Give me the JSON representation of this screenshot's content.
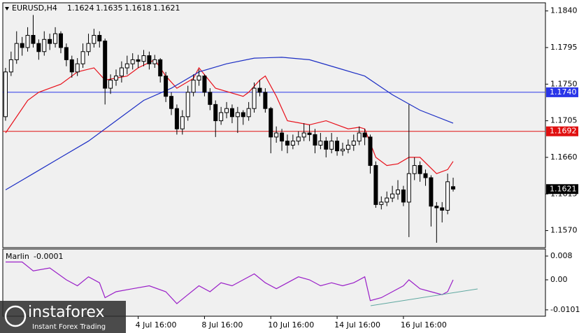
{
  "chart_data": {
    "type": "candlestick",
    "title": "EURUSD,H4",
    "xlim": [
      -0.5,
      97.7
    ],
    "ylim": [
      1.1549,
      1.185
    ],
    "yticks": [
      {
        "value": 1.184,
        "label": "1.1840"
      },
      1.1795,
      {
        "value": 1.175,
        "label": "1.1750"
      },
      1.1705,
      {
        "value": 1.166,
        "label": "1.1660"
      },
      1.1615,
      {
        "value": 1.157,
        "label": "1.1570"
      }
    ],
    "xticks": [
      {
        "value": 24,
        "label": "4 Jul 16:00"
      },
      {
        "value": 36,
        "label": "8 Jul 16:00"
      },
      {
        "value": 48,
        "label": "10 Jul 16:00"
      },
      {
        "value": 60,
        "label": "14 Jul 16:00"
      },
      {
        "value": 72,
        "label": "16 Jul 16:00"
      }
    ],
    "up_color": "#ffffff",
    "down_color": "#000000",
    "candles": [
      [
        1.171,
        1.177,
        1.1705,
        1.1765
      ],
      [
        1.1765,
        1.179,
        1.176,
        1.178
      ],
      [
        1.178,
        1.1815,
        1.1775,
        1.18
      ],
      [
        1.18,
        1.1808,
        1.1785,
        1.1795
      ],
      [
        1.1795,
        1.182,
        1.179,
        1.181
      ],
      [
        1.181,
        1.1835,
        1.1795,
        1.18
      ],
      [
        1.18,
        1.1805,
        1.178,
        1.179
      ],
      [
        1.179,
        1.1815,
        1.1785,
        1.1805
      ],
      [
        1.1805,
        1.1812,
        1.1792,
        1.18
      ],
      [
        1.18,
        1.182,
        1.1795,
        1.1812
      ],
      [
        1.1812,
        1.1815,
        1.1788,
        1.1795
      ],
      [
        1.1795,
        1.18,
        1.1772,
        1.178
      ],
      [
        1.178,
        1.1785,
        1.1758,
        1.1765
      ],
      [
        1.1765,
        1.1782,
        1.176,
        1.1775
      ],
      [
        1.1775,
        1.18,
        1.177,
        1.179
      ],
      [
        1.179,
        1.1812,
        1.1785,
        1.18
      ],
      [
        1.18,
        1.1818,
        1.1795,
        1.181
      ],
      [
        1.181,
        1.1815,
        1.1795,
        1.1803
      ],
      [
        1.1803,
        1.1806,
        1.1725,
        1.1745
      ],
      [
        1.1745,
        1.1762,
        1.1738,
        1.1755
      ],
      [
        1.1755,
        1.1768,
        1.1748,
        1.176
      ],
      [
        1.176,
        1.1778,
        1.1752,
        1.177
      ],
      [
        1.177,
        1.1785,
        1.1762,
        1.1775
      ],
      [
        1.1775,
        1.1788,
        1.1768,
        1.178
      ],
      [
        1.178,
        1.1786,
        1.177,
        1.1778
      ],
      [
        1.1778,
        1.1792,
        1.1772,
        1.1785
      ],
      [
        1.1785,
        1.179,
        1.1768,
        1.1775
      ],
      [
        1.1775,
        1.1786,
        1.177,
        1.178
      ],
      [
        1.178,
        1.1782,
        1.1752,
        1.176
      ],
      [
        1.176,
        1.1765,
        1.1728,
        1.1735
      ],
      [
        1.1735,
        1.174,
        1.1712,
        1.172
      ],
      [
        1.172,
        1.1725,
        1.1688,
        1.1695
      ],
      [
        1.1695,
        1.1718,
        1.1688,
        1.171
      ],
      [
        1.171,
        1.1748,
        1.1705,
        1.174
      ],
      [
        1.174,
        1.1762,
        1.1735,
        1.1755
      ],
      [
        1.1755,
        1.1768,
        1.1748,
        1.176
      ],
      [
        1.176,
        1.1762,
        1.1735,
        1.174
      ],
      [
        1.174,
        1.1745,
        1.1718,
        1.1725
      ],
      [
        1.1725,
        1.173,
        1.1685,
        1.1705
      ],
      [
        1.1705,
        1.1722,
        1.17,
        1.1715
      ],
      [
        1.1715,
        1.1728,
        1.1708,
        1.172
      ],
      [
        1.172,
        1.1725,
        1.1702,
        1.171
      ],
      [
        1.171,
        1.1722,
        1.169,
        1.1715
      ],
      [
        1.1715,
        1.1718,
        1.17,
        1.171
      ],
      [
        1.171,
        1.1728,
        1.1705,
        1.172
      ],
      [
        1.172,
        1.1752,
        1.1715,
        1.1745
      ],
      [
        1.1745,
        1.1755,
        1.1735,
        1.174
      ],
      [
        1.174,
        1.1745,
        1.1715,
        1.172
      ],
      [
        1.172,
        1.1722,
        1.1665,
        1.1685
      ],
      [
        1.1685,
        1.1698,
        1.1678,
        1.169
      ],
      [
        1.169,
        1.1695,
        1.1668,
        1.168
      ],
      [
        1.168,
        1.1688,
        1.1665,
        1.1675
      ],
      [
        1.1675,
        1.1688,
        1.167,
        1.168
      ],
      [
        1.168,
        1.1692,
        1.1675,
        1.1685
      ],
      [
        1.1685,
        1.1702,
        1.168,
        1.169
      ],
      [
        1.169,
        1.17,
        1.168,
        1.1688
      ],
      [
        1.1688,
        1.1695,
        1.1665,
        1.1675
      ],
      [
        1.1675,
        1.169,
        1.167,
        1.168
      ],
      [
        1.168,
        1.1685,
        1.166,
        1.167
      ],
      [
        1.167,
        1.169,
        1.1665,
        1.168
      ],
      [
        1.168,
        1.1685,
        1.1662,
        1.1668
      ],
      [
        1.1668,
        1.1678,
        1.1662,
        1.167
      ],
      [
        1.167,
        1.1682,
        1.1665,
        1.1675
      ],
      [
        1.1675,
        1.1688,
        1.1668,
        1.168
      ],
      [
        1.168,
        1.1698,
        1.1675,
        1.169
      ],
      [
        1.169,
        1.1695,
        1.1675,
        1.1685
      ],
      [
        1.1685,
        1.1688,
        1.164,
        1.165
      ],
      [
        1.165,
        1.1655,
        1.1598,
        1.1602
      ],
      [
        1.1602,
        1.1612,
        1.1596,
        1.1605
      ],
      [
        1.1605,
        1.1618,
        1.16,
        1.161
      ],
      [
        1.161,
        1.1625,
        1.1605,
        1.1615
      ],
      [
        1.1615,
        1.1632,
        1.1608,
        1.162
      ],
      [
        1.162,
        1.1625,
        1.16,
        1.1605
      ],
      [
        1.1605,
        1.1725,
        1.1562,
        1.164
      ],
      [
        1.164,
        1.166,
        1.1632,
        1.165
      ],
      [
        1.165,
        1.1655,
        1.163,
        1.164
      ],
      [
        1.164,
        1.1645,
        1.1625,
        1.1635
      ],
      [
        1.1635,
        1.1638,
        1.1575,
        1.16
      ],
      [
        1.16,
        1.1605,
        1.1555,
        1.1598
      ],
      [
        1.1598,
        1.1605,
        1.158,
        1.1595
      ],
      [
        1.1595,
        1.164,
        1.159,
        1.163
      ],
      [
        1.1624,
        1.1635,
        1.1618,
        1.1621
      ]
    ],
    "lines": [
      {
        "color": "#e8101a",
        "x": [
          0,
          4,
          6,
          10,
          13,
          16,
          18,
          22,
          24,
          27,
          29,
          31,
          34,
          35,
          38,
          43,
          44,
          46,
          47,
          49,
          51,
          55,
          58,
          60,
          62,
          64,
          65,
          67,
          69,
          71,
          73,
          75,
          78,
          80,
          81
        ],
        "values": [
          1.169,
          1.173,
          1.174,
          1.175,
          1.1765,
          1.177,
          1.1755,
          1.176,
          1.177,
          1.178,
          1.176,
          1.1745,
          1.1757,
          1.177,
          1.1745,
          1.1735,
          1.174,
          1.1755,
          1.176,
          1.1735,
          1.1705,
          1.17,
          1.1705,
          1.17,
          1.1695,
          1.1697,
          1.1695,
          1.166,
          1.165,
          1.1652,
          1.166,
          1.166,
          1.164,
          1.1645,
          1.1655
        ]
      },
      {
        "color": "#1c2ec4",
        "x": [
          0,
          5,
          10,
          15,
          20,
          25,
          30,
          35,
          40,
          45,
          50,
          55,
          60,
          65,
          70,
          75,
          81
        ],
        "values": [
          1.162,
          1.164,
          1.166,
          1.168,
          1.1705,
          1.173,
          1.1745,
          1.1765,
          1.1775,
          1.1782,
          1.1783,
          1.178,
          1.177,
          1.176,
          1.1737,
          1.1718,
          1.1702
        ]
      }
    ],
    "hlines": [
      {
        "value": 1.174,
        "label": "1.1740",
        "color": "#2a36e8"
      },
      {
        "value": 1.1692,
        "label": "1.1692",
        "color": "#e01010"
      }
    ],
    "indicator": {
      "name": "Marlin",
      "current": -0.0001,
      "color": "#9a1fc8",
      "ylim": [
        -0.01224,
        0.01035
      ],
      "yticks": [
        0.008,
        {
          "value": 0,
          "label": "0.00"
        },
        -0.0101
      ],
      "x": [
        0,
        3,
        5,
        8,
        11,
        13,
        15,
        17,
        18,
        20,
        23,
        26,
        29,
        31,
        33,
        35,
        37,
        39,
        41,
        43,
        45,
        47,
        49,
        51,
        53,
        55,
        57,
        59,
        61,
        63,
        65,
        66,
        68,
        70,
        72,
        73,
        75,
        77,
        79,
        80,
        81
      ],
      "values": [
        0.006,
        0.006,
        0.003,
        0.004,
        0.0,
        -0.002,
        0.001,
        -0.001,
        -0.006,
        -0.004,
        -0.003,
        -0.002,
        -0.004,
        -0.008,
        -0.005,
        -0.002,
        -0.004,
        -0.001,
        -0.002,
        0.0,
        0.002,
        -0.001,
        -0.003,
        -0.001,
        0.001,
        0.0,
        -0.002,
        -0.001,
        -0.002,
        -0.001,
        0.001,
        -0.007,
        -0.006,
        -0.004,
        -0.002,
        0.0,
        -0.003,
        -0.004,
        -0.005,
        -0.004,
        0.0
      ]
    },
    "watermark": {
      "brand": "instaforex",
      "tagline": "Instant Forex Trading"
    }
  }
}
